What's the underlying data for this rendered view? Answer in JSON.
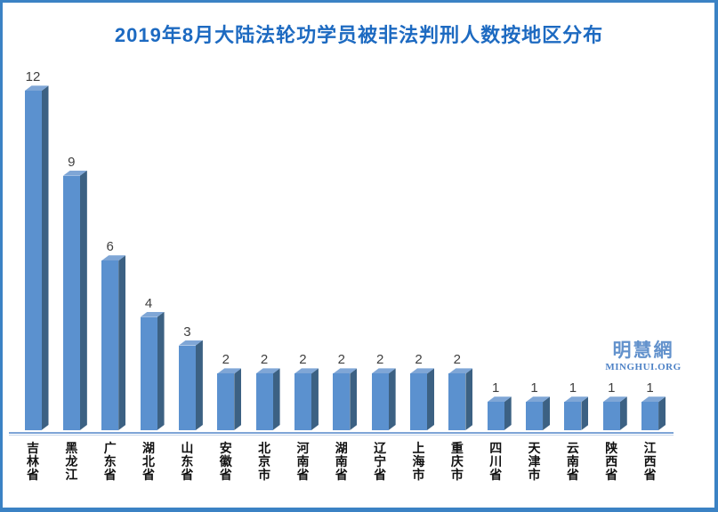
{
  "title": "2019年8月大陆法轮功学员被非法判刑人数按地区分布",
  "watermark": {
    "cjk": "明慧網",
    "latin": "MINGHUI.ORG",
    "cjk_color": "#6392cc",
    "latin_color": "#4e82c6"
  },
  "colors": {
    "frame_border": "#3b82c4",
    "title": "#1d6ac1",
    "bar_front": "#5b91cf",
    "bar_side": "#3c6183",
    "bar_top": "#7fa6d6",
    "axis_line": "#7ea4d6",
    "axis_line_light": "#c8d8ec",
    "value_label": "#3f3f3f"
  },
  "chart_data": {
    "type": "bar",
    "style": "3d-column",
    "title": "2019年8月大陆法轮功学员被非法判刑人数按地区分布",
    "categories": [
      "吉林省",
      "黑龙江",
      "广东省",
      "湖北省",
      "山东省",
      "安徽省",
      "北京市",
      "河南省",
      "湖南省",
      "辽宁省",
      "上海市",
      "重庆市",
      "四川省",
      "天津市",
      "云南省",
      "陕西省",
      "江西省"
    ],
    "values": [
      12,
      9,
      6,
      4,
      3,
      2,
      2,
      2,
      2,
      2,
      2,
      2,
      1,
      1,
      1,
      1,
      1
    ],
    "xlabel": "",
    "ylabel": "",
    "ylim": [
      0,
      12.5
    ],
    "grid": false,
    "legend": "none",
    "data_labels": true,
    "category_label_orientation": "vertical"
  }
}
